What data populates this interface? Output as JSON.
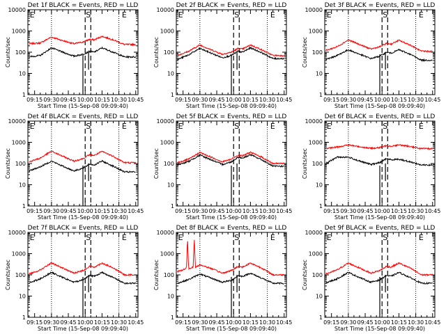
{
  "chart_data": [
    {
      "type": "line",
      "title": "Det 1f BLACK = Events, RED = LLD",
      "xlabel": "Start Time (15-Sep-08 09:09:40)",
      "ylabel": "Counts/sec",
      "yscale": "log",
      "ylim": [
        1,
        10000
      ],
      "xticks": [
        "09:15",
        "09:30",
        "09:45",
        "10:00",
        "10:15",
        "10:30",
        "10:45"
      ],
      "yticks": [
        "1",
        "10",
        "100",
        "1000",
        "10000"
      ],
      "markers": [
        {
          "label": "E",
          "x": "09:10"
        },
        {
          "label": "S",
          "x": "10:00"
        },
        {
          "label": "E",
          "x": "10:32"
        }
      ],
      "dotted_x": [
        "09:30",
        "10:30"
      ],
      "dashed_x": [
        "10:00",
        "10:05"
      ],
      "series": [
        {
          "color": "#ff0000",
          "x": [
            "09:10",
            "09:20",
            "09:30",
            "09:40",
            "09:50",
            "09:58",
            "10:04",
            "10:08",
            "10:15",
            "10:25",
            "10:35",
            "10:45"
          ],
          "values": [
            250,
            270,
            520,
            350,
            250,
            300,
            400,
            380,
            560,
            380,
            230,
            230
          ]
        },
        {
          "color": "#000000",
          "x": [
            "09:10",
            "09:20",
            "09:30",
            "09:40",
            "09:50",
            "09:58",
            "10:04",
            "10:08",
            "10:15",
            "10:25",
            "10:35",
            "10:45"
          ],
          "values": [
            60,
            70,
            160,
            100,
            65,
            80,
            110,
            100,
            160,
            100,
            60,
            60
          ]
        }
      ]
    },
    {
      "type": "line",
      "title": "Det 2f BLACK = Events, RED = LLD",
      "xlabel": "Start Time (15-Sep-08 09:09:40)",
      "ylabel": "Counts/sec",
      "yscale": "log",
      "ylim": [
        1,
        10000
      ],
      "xticks": [
        "09:15",
        "09:30",
        "09:45",
        "10:00",
        "10:15",
        "10:30",
        "10:45"
      ],
      "yticks": [
        "1",
        "10",
        "100",
        "1000",
        "10000"
      ],
      "markers": [
        {
          "label": "E",
          "x": "09:10"
        },
        {
          "label": "S",
          "x": "10:00"
        },
        {
          "label": "E",
          "x": "10:32"
        }
      ],
      "dotted_x": [
        "09:30",
        "10:30"
      ],
      "dashed_x": [
        "10:00",
        "10:05"
      ],
      "series": [
        {
          "color": "#ff0000",
          "x": [
            "09:10",
            "09:20",
            "09:30",
            "09:40",
            "09:50",
            "09:58",
            "10:04",
            "10:08",
            "10:15",
            "10:25",
            "10:35",
            "10:45"
          ],
          "values": [
            70,
            110,
            220,
            130,
            80,
            100,
            150,
            140,
            220,
            130,
            70,
            70
          ]
        },
        {
          "color": "#000000",
          "x": [
            "09:10",
            "09:20",
            "09:30",
            "09:40",
            "09:50",
            "09:58",
            "10:04",
            "10:08",
            "10:15",
            "10:25",
            "10:35",
            "10:45"
          ],
          "values": [
            45,
            75,
            150,
            90,
            55,
            70,
            110,
            100,
            160,
            95,
            50,
            50
          ]
        }
      ]
    },
    {
      "type": "line",
      "title": "Det 3f BLACK = Events, RED = LLD",
      "xlabel": "Start Time (15-Sep-08 09:09:40)",
      "ylabel": "Counts/sec",
      "yscale": "log",
      "ylim": [
        1,
        10000
      ],
      "xticks": [
        "09:15",
        "09:30",
        "09:45",
        "10:00",
        "10:15",
        "10:30",
        "10:45"
      ],
      "yticks": [
        "1",
        "10",
        "100",
        "1000",
        "10000"
      ],
      "markers": [
        {
          "label": "E",
          "x": "09:10"
        },
        {
          "label": "S",
          "x": "10:00"
        },
        {
          "label": "E",
          "x": "10:32"
        }
      ],
      "dotted_x": [
        "09:30",
        "10:30"
      ],
      "dashed_x": [
        "10:00",
        "10:05"
      ],
      "series": [
        {
          "color": "#ff0000",
          "x": [
            "09:10",
            "09:20",
            "09:30",
            "09:40",
            "09:50",
            "09:58",
            "10:04",
            "10:08",
            "10:15",
            "10:25",
            "10:35",
            "10:45"
          ],
          "values": [
            120,
            180,
            380,
            230,
            140,
            180,
            260,
            240,
            360,
            220,
            110,
            110
          ]
        },
        {
          "color": "#000000",
          "x": [
            "09:10",
            "09:20",
            "09:30",
            "09:40",
            "09:50",
            "09:58",
            "10:04",
            "10:08",
            "10:15",
            "10:25",
            "10:35",
            "10:45"
          ],
          "values": [
            45,
            70,
            130,
            80,
            50,
            65,
            100,
            90,
            130,
            80,
            42,
            42
          ]
        }
      ]
    },
    {
      "type": "line",
      "title": "Det 4f BLACK = Events, RED = LLD",
      "xlabel": "Start Time (15-Sep-08 09:09:40)",
      "ylabel": "Counts/sec",
      "yscale": "log",
      "ylim": [
        1,
        10000
      ],
      "xticks": [
        "09:15",
        "09:30",
        "09:45",
        "10:00",
        "10:15",
        "10:30",
        "10:45"
      ],
      "yticks": [
        "1",
        "10",
        "100",
        "1000",
        "10000"
      ],
      "markers": [
        {
          "label": "E",
          "x": "09:10"
        },
        {
          "label": "S",
          "x": "10:00"
        },
        {
          "label": "E",
          "x": "10:32"
        }
      ],
      "dotted_x": [
        "09:30",
        "10:30"
      ],
      "dashed_x": [
        "10:00",
        "10:05"
      ],
      "series": [
        {
          "color": "#ff0000",
          "x": [
            "09:10",
            "09:20",
            "09:30",
            "09:40",
            "09:50",
            "09:58",
            "10:04",
            "10:08",
            "10:15",
            "10:25",
            "10:35",
            "10:45"
          ],
          "values": [
            120,
            180,
            380,
            220,
            130,
            170,
            260,
            240,
            370,
            220,
            110,
            110
          ]
        },
        {
          "color": "#000000",
          "x": [
            "09:10",
            "09:20",
            "09:30",
            "09:40",
            "09:50",
            "09:58",
            "10:04",
            "10:08",
            "10:15",
            "10:25",
            "10:35",
            "10:45"
          ],
          "values": [
            45,
            70,
            130,
            75,
            45,
            60,
            95,
            85,
            130,
            75,
            40,
            40
          ]
        }
      ]
    },
    {
      "type": "line",
      "title": "Det 5f BLACK = Events, RED = LLD",
      "xlabel": "Start Time (15-Sep-08 09:09:40)",
      "ylabel": "Counts/sec",
      "yscale": "log",
      "ylim": [
        1,
        10000
      ],
      "xticks": [
        "09:15",
        "09:30",
        "09:45",
        "10:00",
        "10:15",
        "10:30",
        "10:45"
      ],
      "yticks": [
        "1",
        "10",
        "100",
        "1000",
        "10000"
      ],
      "markers": [
        {
          "label": "E",
          "x": "09:10"
        },
        {
          "label": "S",
          "x": "10:00"
        },
        {
          "label": "E",
          "x": "10:32"
        }
      ],
      "dotted_x": [
        "09:30",
        "10:30"
      ],
      "dashed_x": [
        "10:00",
        "10:05"
      ],
      "series": [
        {
          "color": "#ff0000",
          "x": [
            "09:10",
            "09:20",
            "09:30",
            "09:40",
            "09:50",
            "09:58",
            "10:04",
            "10:08",
            "10:15",
            "10:25",
            "10:35",
            "10:45"
          ],
          "values": [
            110,
            160,
            330,
            200,
            120,
            160,
            250,
            230,
            340,
            200,
            100,
            100
          ]
        },
        {
          "color": "#000000",
          "x": [
            "09:10",
            "09:20",
            "09:30",
            "09:40",
            "09:50",
            "09:58",
            "10:04",
            "10:08",
            "10:15",
            "10:25",
            "10:35",
            "10:45"
          ],
          "values": [
            85,
            125,
            250,
            150,
            90,
            120,
            200,
            180,
            260,
            150,
            75,
            75
          ]
        }
      ]
    },
    {
      "type": "line",
      "title": "Det 6f BLACK = Events, RED = LLD",
      "xlabel": "Start Time (15-Sep-08 09:09:40)",
      "ylabel": "Counts/sec",
      "yscale": "log",
      "ylim": [
        1,
        10000
      ],
      "xticks": [
        "09:15",
        "09:30",
        "09:45",
        "10:00",
        "10:15",
        "10:30",
        "10:45"
      ],
      "yticks": [
        "1",
        "10",
        "100",
        "1000",
        "10000"
      ],
      "markers": [
        {
          "label": "E",
          "x": "09:10"
        },
        {
          "label": "S",
          "x": "10:00"
        },
        {
          "label": "E",
          "x": "10:32"
        }
      ],
      "dotted_x": [
        "09:30",
        "10:30"
      ],
      "dashed_x": [
        "10:00",
        "10:05"
      ],
      "series": [
        {
          "color": "#ff0000",
          "x": [
            "09:10",
            "09:20",
            "09:30",
            "09:40",
            "09:50",
            "09:58",
            "10:04",
            "10:08",
            "10:15",
            "10:25",
            "10:35",
            "10:45"
          ],
          "values": [
            500,
            600,
            750,
            620,
            520,
            560,
            700,
            660,
            750,
            640,
            500,
            500
          ]
        },
        {
          "color": "#000000",
          "x": [
            "09:10",
            "09:20",
            "09:30",
            "09:40",
            "09:50",
            "09:58",
            "10:04",
            "10:08",
            "10:15",
            "10:25",
            "10:35",
            "10:45"
          ],
          "values": [
            100,
            200,
            200,
            130,
            90,
            110,
            170,
            150,
            160,
            120,
            85,
            85
          ]
        }
      ]
    },
    {
      "type": "line",
      "title": "Det 7f BLACK = Events, RED = LLD",
      "xlabel": "Start Time (15-Sep-08 09:09:40)",
      "ylabel": "Counts/sec",
      "yscale": "log",
      "ylim": [
        1,
        10000
      ],
      "xticks": [
        "09:15",
        "09:30",
        "09:45",
        "10:00",
        "10:15",
        "10:30",
        "10:45"
      ],
      "yticks": [
        "1",
        "10",
        "100",
        "1000",
        "10000"
      ],
      "markers": [
        {
          "label": "E",
          "x": "09:10"
        },
        {
          "label": "S",
          "x": "10:00"
        },
        {
          "label": "E",
          "x": "10:32"
        }
      ],
      "dotted_x": [
        "09:30",
        "10:30"
      ],
      "dashed_x": [
        "10:00",
        "10:05"
      ],
      "series": [
        {
          "color": "#ff0000",
          "x": [
            "09:10",
            "09:20",
            "09:30",
            "09:40",
            "09:50",
            "09:58",
            "10:04",
            "10:08",
            "10:15",
            "10:25",
            "10:35",
            "10:45"
          ],
          "values": [
            110,
            170,
            360,
            210,
            120,
            160,
            250,
            230,
            360,
            210,
            100,
            100
          ]
        },
        {
          "color": "#000000",
          "x": [
            "09:10",
            "09:20",
            "09:30",
            "09:40",
            "09:50",
            "09:58",
            "10:04",
            "10:08",
            "10:15",
            "10:25",
            "10:35",
            "10:45"
          ],
          "values": [
            42,
            65,
            130,
            75,
            45,
            58,
            95,
            85,
            130,
            75,
            40,
            40
          ]
        }
      ]
    },
    {
      "type": "line",
      "title": "Det 8f BLACK = Events, RED = LLD",
      "xlabel": "Start Time (15-Sep-08 09:09:40)",
      "ylabel": "Counts/sec",
      "yscale": "log",
      "ylim": [
        1,
        10000
      ],
      "xticks": [
        "09:15",
        "09:30",
        "09:45",
        "10:00",
        "10:15",
        "10:30",
        "10:45"
      ],
      "yticks": [
        "1",
        "10",
        "100",
        "1000",
        "10000"
      ],
      "markers": [
        {
          "label": "E",
          "x": "09:10"
        },
        {
          "label": "S",
          "x": "10:00"
        },
        {
          "label": "E",
          "x": "10:32"
        }
      ],
      "dotted_x": [
        "09:30",
        "10:30"
      ],
      "dashed_x": [
        "10:00",
        "10:05"
      ],
      "series": [
        {
          "color": "#ff0000",
          "x": [
            "09:10",
            "09:18",
            "09:19",
            "09:20",
            "09:24",
            "09:25",
            "09:26",
            "09:30",
            "09:40",
            "09:50",
            "09:58",
            "10:04",
            "10:08",
            "10:15",
            "10:25",
            "10:35",
            "10:45"
          ],
          "values": [
            140,
            200,
            5000,
            190,
            240,
            5000,
            220,
            300,
            200,
            120,
            160,
            250,
            230,
            360,
            210,
            100,
            100
          ]
        },
        {
          "color": "#000000",
          "x": [
            "09:10",
            "09:20",
            "09:30",
            "09:40",
            "09:50",
            "09:58",
            "10:04",
            "10:08",
            "10:15",
            "10:25",
            "10:35",
            "10:45"
          ],
          "values": [
            40,
            60,
            110,
            70,
            45,
            55,
            90,
            85,
            120,
            70,
            40,
            40
          ]
        }
      ]
    },
    {
      "type": "line",
      "title": "Det 9f BLACK = Events, RED = LLD",
      "xlabel": "Start Time (15-Sep-08 09:09:40)",
      "ylabel": "Counts/sec",
      "yscale": "log",
      "ylim": [
        1,
        10000
      ],
      "xticks": [
        "09:15",
        "09:30",
        "09:45",
        "10:00",
        "10:15",
        "10:30",
        "10:45"
      ],
      "yticks": [
        "1",
        "10",
        "100",
        "1000",
        "10000"
      ],
      "markers": [
        {
          "label": "E",
          "x": "09:10"
        },
        {
          "label": "S",
          "x": "10:00"
        },
        {
          "label": "E",
          "x": "10:32"
        }
      ],
      "dotted_x": [
        "09:30",
        "10:30"
      ],
      "dashed_x": [
        "10:00",
        "10:05"
      ],
      "series": [
        {
          "color": "#ff0000",
          "x": [
            "09:10",
            "09:20",
            "09:30",
            "09:40",
            "09:50",
            "09:58",
            "10:04",
            "10:08",
            "10:15",
            "10:25",
            "10:35",
            "10:45"
          ],
          "values": [
            110,
            170,
            360,
            210,
            120,
            160,
            250,
            230,
            360,
            210,
            100,
            100
          ]
        },
        {
          "color": "#000000",
          "x": [
            "09:10",
            "09:20",
            "09:30",
            "09:40",
            "09:50",
            "09:58",
            "10:04",
            "10:08",
            "10:15",
            "10:25",
            "10:35",
            "10:45"
          ],
          "values": [
            42,
            65,
            130,
            75,
            45,
            58,
            95,
            85,
            130,
            75,
            40,
            40
          ]
        }
      ]
    }
  ]
}
